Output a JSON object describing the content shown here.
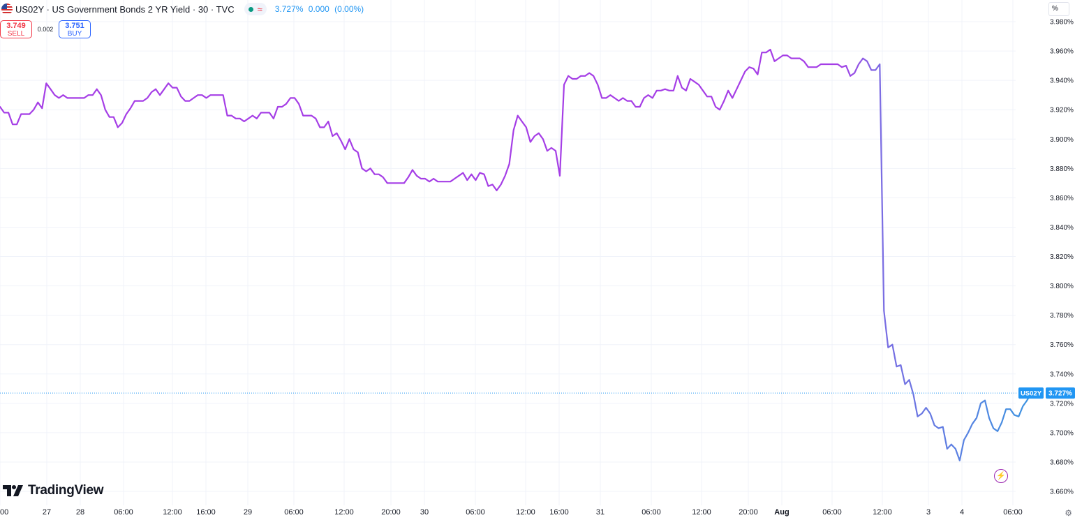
{
  "header": {
    "symbol_title": "US02Y · US Government Bonds 2 YR Yield · 30 · TVC",
    "price": "3.727%",
    "change": "0.000",
    "change_pct": "(0.00%)",
    "status_icons": [
      "market-open-dot",
      "delayed-wave-icon"
    ]
  },
  "trade": {
    "sell_price": "3.749",
    "sell_label": "SELL",
    "spread": "0.002",
    "buy_price": "3.751",
    "buy_label": "BUY"
  },
  "scale_unit": "%",
  "branding": {
    "logo_text": "TradingView"
  },
  "price_badge": {
    "symbol": "US02Y",
    "value": "3.727%"
  },
  "colors": {
    "line_start": "#a53ee6",
    "line_end": "#2a9fe0",
    "last_price": "#2196f3",
    "grid": "#f0f3fa",
    "sell": "#f23645",
    "buy": "#2962ff"
  },
  "chart_data": {
    "type": "line",
    "title": "US02Y · US Government Bonds 2 YR Yield · 30 · TVC",
    "ylabel": "%",
    "ylim": [
      3.655,
      3.978
    ],
    "y_ticks": [
      "3.980%",
      "3.960%",
      "3.940%",
      "3.920%",
      "3.900%",
      "3.880%",
      "3.860%",
      "3.840%",
      "3.820%",
      "3.800%",
      "3.780%",
      "3.760%",
      "3.740%",
      "3.720%",
      "3.700%",
      "3.680%",
      "3.660%"
    ],
    "x_ticks": [
      "00",
      "27",
      "28",
      "06:00",
      "12:00",
      "16:00",
      "29",
      "06:00",
      "12:00",
      "20:00",
      "30",
      "06:00",
      "12:00",
      "16:00",
      "31",
      "06:00",
      "12:00",
      "20:00",
      "Aug",
      "06:00",
      "12:00",
      "3",
      "4",
      "06:00"
    ],
    "grid": true,
    "last_value": 3.727,
    "series": [
      {
        "values": [
          3.922,
          3.918,
          3.918,
          3.91,
          3.91,
          3.917,
          3.917,
          3.917,
          3.92,
          3.925,
          3.921,
          3.938,
          3.934,
          3.93,
          3.928,
          3.93,
          3.928,
          3.928,
          3.928,
          3.928,
          3.928,
          3.93,
          3.93,
          3.934,
          3.93,
          3.92,
          3.915,
          3.915,
          3.908,
          3.911,
          3.917,
          3.921,
          3.926,
          3.926,
          3.926,
          3.928,
          3.932,
          3.934,
          3.93,
          3.934,
          3.938,
          3.935,
          3.935,
          3.929,
          3.926,
          3.926,
          3.928,
          3.93,
          3.93,
          3.928,
          3.93,
          3.93,
          3.93,
          3.93,
          3.916,
          3.916,
          3.914,
          3.914,
          3.912,
          3.914,
          3.916,
          3.914,
          3.918,
          3.918,
          3.918,
          3.914,
          3.922,
          3.922,
          3.924,
          3.928,
          3.928,
          3.924,
          3.916,
          3.916,
          3.916,
          3.914,
          3.908,
          3.908,
          3.912,
          3.902,
          3.904,
          3.899,
          3.893,
          3.9,
          3.893,
          3.891,
          3.88,
          3.878,
          3.88,
          3.876,
          3.876,
          3.874,
          3.87,
          3.87,
          3.87,
          3.87,
          3.87,
          3.874,
          3.879,
          3.875,
          3.873,
          3.873,
          3.871,
          3.873,
          3.871,
          3.871,
          3.871,
          3.871,
          3.873,
          3.875,
          3.877,
          3.872,
          3.876,
          3.872,
          3.877,
          3.876,
          3.868,
          3.869,
          3.865,
          3.869,
          3.875,
          3.883,
          3.906,
          3.916,
          3.912,
          3.908,
          3.898,
          3.902,
          3.904,
          3.9,
          3.892,
          3.894,
          3.892,
          3.875,
          3.937,
          3.943,
          3.941,
          3.941,
          3.943,
          3.943,
          3.945,
          3.943,
          3.937,
          3.928,
          3.928,
          3.93,
          3.928,
          3.926,
          3.928,
          3.926,
          3.926,
          3.922,
          3.922,
          3.928,
          3.93,
          3.928,
          3.933,
          3.933,
          3.934,
          3.933,
          3.933,
          3.943,
          3.935,
          3.933,
          3.941,
          3.939,
          3.937,
          3.933,
          3.929,
          3.929,
          3.922,
          3.92,
          3.926,
          3.933,
          3.928,
          3.934,
          3.94,
          3.946,
          3.949,
          3.948,
          3.944,
          3.959,
          3.959,
          3.961,
          3.953,
          3.955,
          3.957,
          3.957,
          3.955,
          3.955,
          3.955,
          3.953,
          3.949,
          3.949,
          3.949,
          3.951,
          3.951,
          3.951,
          3.951,
          3.951,
          3.949,
          3.95,
          3.943,
          3.945,
          3.951,
          3.955,
          3.953,
          3.947,
          3.947,
          3.951,
          3.783,
          3.758,
          3.76,
          3.745,
          3.746,
          3.733,
          3.736,
          3.726,
          3.711,
          3.713,
          3.717,
          3.713,
          3.705,
          3.703,
          3.704,
          3.689,
          3.692,
          3.689,
          3.681,
          3.695,
          3.7,
          3.706,
          3.71,
          3.72,
          3.722,
          3.71,
          3.703,
          3.701,
          3.707,
          3.716,
          3.716,
          3.712,
          3.711,
          3.718,
          3.722,
          3.727,
          3.727
        ]
      }
    ]
  }
}
